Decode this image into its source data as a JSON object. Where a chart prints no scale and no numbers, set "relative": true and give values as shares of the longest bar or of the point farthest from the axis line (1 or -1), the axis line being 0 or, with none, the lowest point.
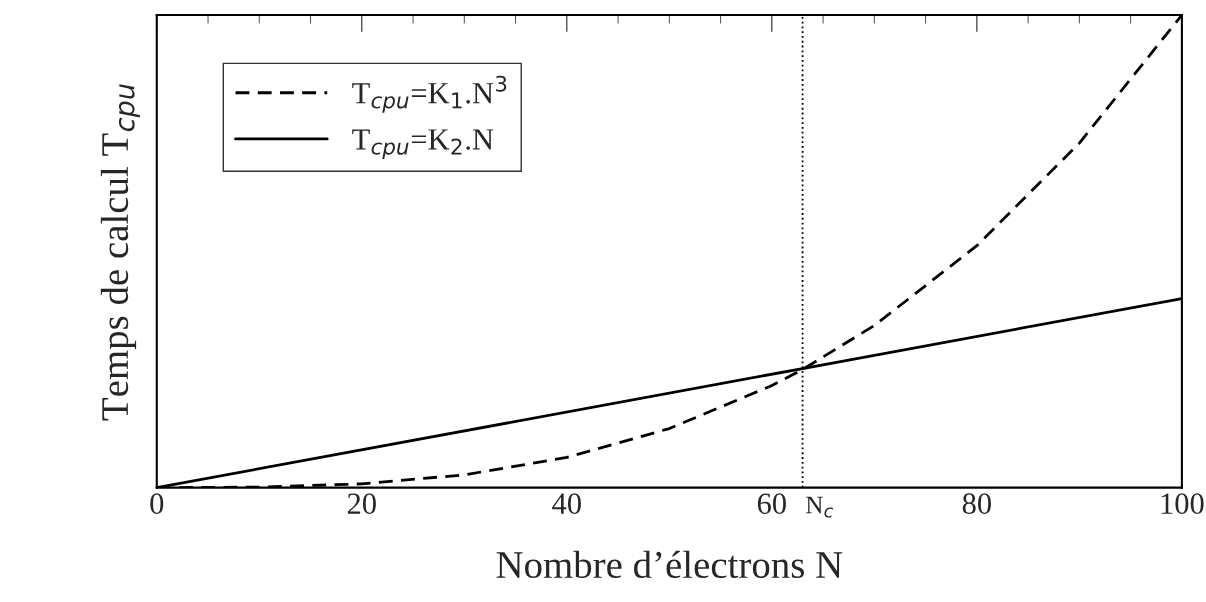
{
  "chart_data": {
    "type": "line",
    "relative": true,
    "xlabel": "Nombre d’électrons N",
    "ylabel": "Temps de calcul T$_{cpu}$",
    "xlim": [
      0,
      100
    ],
    "xticks": [
      0,
      20,
      40,
      60,
      80,
      100
    ],
    "tick_labels": "x",
    "grid": false,
    "legend": "top left",
    "series": [
      {
        "name": "T$_{cpu}$=K$_{1}$.N$^{3}$",
        "color": "#000000",
        "line_style": "dashed",
        "x": [
          0,
          10,
          20,
          30,
          40,
          50,
          60,
          63,
          70,
          80,
          90,
          100
        ],
        "values": [
          0,
          0.001,
          0.008,
          0.027,
          0.064,
          0.125,
          0.216,
          0.25,
          0.343,
          0.512,
          0.729,
          1
        ]
      },
      {
        "name": "T$_{cpu}$=K$_{2}$.N",
        "color": "#000000",
        "line_style": "solid",
        "x": [
          0,
          63,
          100
        ],
        "values": [
          0,
          0.252,
          0.4
        ]
      }
    ],
    "ref_lines": [
      {
        "axis": "x",
        "value": 63,
        "label": "N$_{c}$",
        "line_style": "dotted",
        "color": "#000000"
      }
    ]
  }
}
